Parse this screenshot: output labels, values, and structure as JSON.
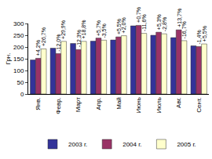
{
  "chart_data": {
    "type": "bar",
    "y_label": "Грн.",
    "categories": [
      "Янв.",
      "Февр.",
      "Март",
      "Апр.",
      "Май",
      "Июнь",
      "Июль",
      "Авг.",
      "Сент."
    ],
    "series": [
      {
        "name": "2003 г.",
        "color": "#333399",
        "values": [
          145,
          195,
          215,
          225,
          230,
          290,
          250,
          240,
          205
        ]
      },
      {
        "name": "2004 г.",
        "color": "#993366",
        "values": [
          152,
          172,
          189,
          238,
          243,
          292,
          263,
          273,
          202
        ]
      },
      {
        "name": "2005 г.",
        "color": "#ffffcc",
        "values": [
          192,
          224,
          224,
          229,
          248,
          258,
          256,
          227,
          213
        ]
      }
    ],
    "annotations": [
      {
        "category": "Янв.",
        "series": "2004 г.",
        "text": "+4,2%"
      },
      {
        "category": "Янв.",
        "series": "2005 г.",
        "text": "+26,7%"
      },
      {
        "category": "Февр.",
        "series": "2004 г.",
        "text": "-12,0%"
      },
      {
        "category": "Февр.",
        "series": "2005 г.",
        "text": "+29,9%"
      },
      {
        "category": "Март",
        "series": "2004 г.",
        "text": "-12,3%"
      },
      {
        "category": "Март",
        "series": "2005 г.",
        "text": "+18,8%"
      },
      {
        "category": "Апр.",
        "series": "2004 г.",
        "text": "+5,7%"
      },
      {
        "category": "Апр.",
        "series": "2005 г.",
        "text": "-3,5%"
      },
      {
        "category": "Май",
        "series": "2004 г.",
        "text": "+5,5%"
      },
      {
        "category": "Май",
        "series": "2005 г.",
        "text": "+2,0%"
      },
      {
        "category": "Июнь",
        "series": "2004 г.",
        "text": "+0,7%"
      },
      {
        "category": "Июнь",
        "series": "2005 г.",
        "text": "-11,6%"
      },
      {
        "category": "Июль",
        "series": "2004 г.",
        "text": "+5,3%"
      },
      {
        "category": "Июль",
        "series": "2005 г.",
        "text": "-2,8%"
      },
      {
        "category": "Авг.",
        "series": "2004 г.",
        "text": "+13,7%"
      },
      {
        "category": "Авг.",
        "series": "2005 г.",
        "text": "-16,7%"
      },
      {
        "category": "Сент.",
        "series": "2004 г.",
        "text": "-1,4%"
      },
      {
        "category": "Сент.",
        "series": "2005 г.",
        "text": "+5,5%"
      }
    ],
    "ylim": [
      0,
      300
    ],
    "yticks": [
      0,
      50,
      100,
      150,
      200,
      250,
      300
    ],
    "grid": false,
    "legend": "bottom"
  }
}
